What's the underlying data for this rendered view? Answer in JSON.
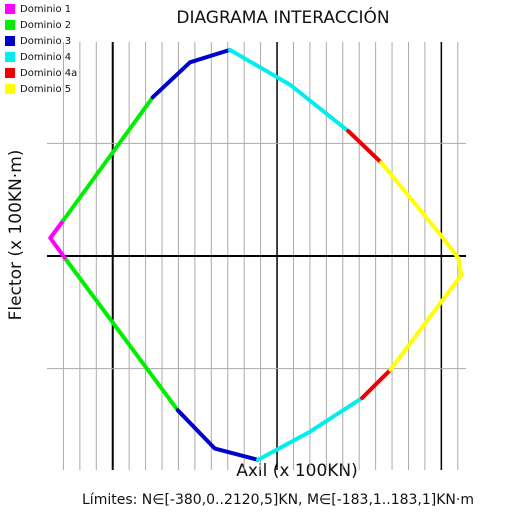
{
  "chart_data": {
    "type": "line",
    "title": "DIAGRAMA INTERACCIÓN",
    "x_label": "Axil (x 100KN)",
    "y_label": "Flector (x 100KN·m)",
    "footer": "Límites: N∈[-380,0..2120,5]KN,   M∈[-183,1..183,1]KN·m",
    "xlim": [
      -4,
      21.5
    ],
    "ylim": [
      -1.9,
      1.9
    ],
    "xticks": [
      -3,
      -2,
      -1,
      0,
      1,
      2,
      3,
      4,
      5,
      6,
      7,
      8,
      9,
      10,
      11,
      12,
      13,
      14,
      15,
      16,
      17,
      18,
      19,
      20,
      21
    ],
    "yticks": [
      -1,
      0,
      1
    ],
    "grid": true,
    "legend": "upper left",
    "series": [
      {
        "name": "Dominio 1",
        "color": "#ff00ff",
        "x": [
          -3.8,
          -2.99,
          null,
          -2.8,
          -3.8
        ],
        "values": [
          0.16,
          0.32,
          null,
          -0.04,
          0.16
        ]
      },
      {
        "name": "Dominio 2",
        "color": "#00ee00",
        "x": [
          -2.99,
          2.44,
          null,
          3.96,
          -2.8
        ],
        "values": [
          0.32,
          1.41,
          null,
          -1.37,
          -0.04
        ]
      },
      {
        "name": "Dominio 3",
        "color": "#0000cc",
        "x": [
          2.44,
          4.7,
          7.13,
          null,
          8.84,
          6.22,
          3.96
        ],
        "values": [
          1.41,
          1.72,
          1.83,
          null,
          -1.81,
          -1.71,
          -1.37
        ]
      },
      {
        "name": "Dominio 4",
        "color": "#00eeee",
        "x": [
          7.13,
          10.8,
          14.33,
          null,
          15.18,
          12.0,
          8.84
        ],
        "values": [
          1.83,
          1.52,
          1.11,
          null,
          -1.26,
          -1.56,
          -1.81
        ]
      },
      {
        "name": "Dominio 4a",
        "color": "#ee0000",
        "x": [
          14.33,
          16.34,
          null,
          16.9,
          15.18
        ],
        "values": [
          1.11,
          0.83,
          null,
          -1.01,
          -1.26
        ]
      },
      {
        "name": "Dominio 5",
        "color": "#ffff00",
        "x": [
          16.34,
          19.94,
          21.04,
          21.22,
          null,
          21.22,
          16.9
        ],
        "values": [
          0.83,
          0.19,
          -0.02,
          -0.17,
          null,
          -0.17,
          -1.01
        ]
      }
    ]
  }
}
